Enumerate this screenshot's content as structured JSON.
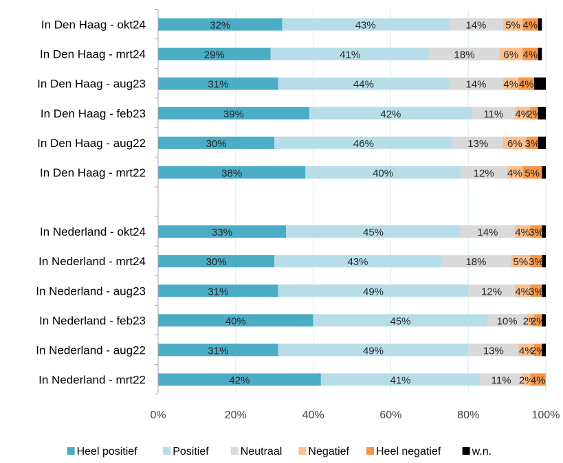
{
  "chart_data": {
    "type": "bar",
    "orientation": "horizontal",
    "stacked": true,
    "categories": [
      "In Den Haag - okt24",
      "In Den Haag - mrt24",
      "In Den Haag - aug23",
      "In Den Haag - feb23",
      "In Den Haag - aug22",
      "In Den Haag - mrt22",
      "",
      "In Nederland - okt24",
      "In Nederland - mrt24",
      "In Nederland - aug23",
      "In Nederland - feb23",
      "In Nederland - aug22",
      "In Nederland - mrt22"
    ],
    "series": [
      {
        "name": "Heel positief",
        "color": "#4bacc6",
        "values": [
          32,
          29,
          31,
          39,
          30,
          38,
          null,
          33,
          30,
          31,
          40,
          31,
          42
        ]
      },
      {
        "name": "Positief",
        "color": "#b7dee8",
        "values": [
          43,
          41,
          44,
          42,
          46,
          40,
          null,
          45,
          43,
          49,
          45,
          49,
          41
        ]
      },
      {
        "name": "Neutraal",
        "color": "#d9d9d9",
        "values": [
          14,
          18,
          14,
          11,
          13,
          12,
          null,
          14,
          18,
          12,
          10,
          13,
          11
        ]
      },
      {
        "name": "Negatief",
        "color": "#fac090",
        "values": [
          5,
          6,
          4,
          4,
          6,
          4,
          null,
          4,
          5,
          4,
          2,
          4,
          2
        ]
      },
      {
        "name": "Heel negatief",
        "color": "#f79646",
        "values": [
          4,
          4,
          4,
          2,
          3,
          5,
          null,
          3,
          3,
          3,
          2,
          2,
          4
        ]
      },
      {
        "name": "w.n.",
        "color": "#000000",
        "values": [
          1,
          1,
          3,
          2,
          2,
          1,
          null,
          1,
          1,
          1,
          1,
          1,
          0
        ]
      }
    ],
    "value_labels": [
      [
        "32%",
        "43%",
        "14%",
        "5%",
        "4%",
        ""
      ],
      [
        "29%",
        "41%",
        "18%",
        "6%",
        "4%",
        ""
      ],
      [
        "31%",
        "44%",
        "14%",
        "4%",
        "4%",
        ""
      ],
      [
        "39%",
        "42%",
        "11%",
        "4%",
        "2%",
        ""
      ],
      [
        "30%",
        "46%",
        "13%",
        "6%",
        "3%",
        ""
      ],
      [
        "38%",
        "40%",
        "12%",
        "4%",
        "5%",
        ""
      ],
      [
        "",
        "",
        "",
        "",
        "",
        ""
      ],
      [
        "33%",
        "45%",
        "14%",
        "4%",
        "3%",
        ""
      ],
      [
        "30%",
        "43%",
        "18%",
        "5%",
        "3%",
        ""
      ],
      [
        "31%",
        "49%",
        "12%",
        "4%",
        "3%",
        ""
      ],
      [
        "40%",
        "45%",
        "10%",
        "2%",
        "2%",
        ""
      ],
      [
        "31%",
        "49%",
        "13%",
        "4%",
        "2%",
        ""
      ],
      [
        "42%",
        "41%",
        "11%",
        "2%",
        "4%",
        ""
      ]
    ],
    "x_ticks": [
      "0%",
      "20%",
      "40%",
      "60%",
      "80%",
      "100%"
    ],
    "xlim": [
      0,
      100
    ],
    "grid": true,
    "legend_position": "bottom",
    "title": "",
    "xlabel": "",
    "ylabel": ""
  }
}
